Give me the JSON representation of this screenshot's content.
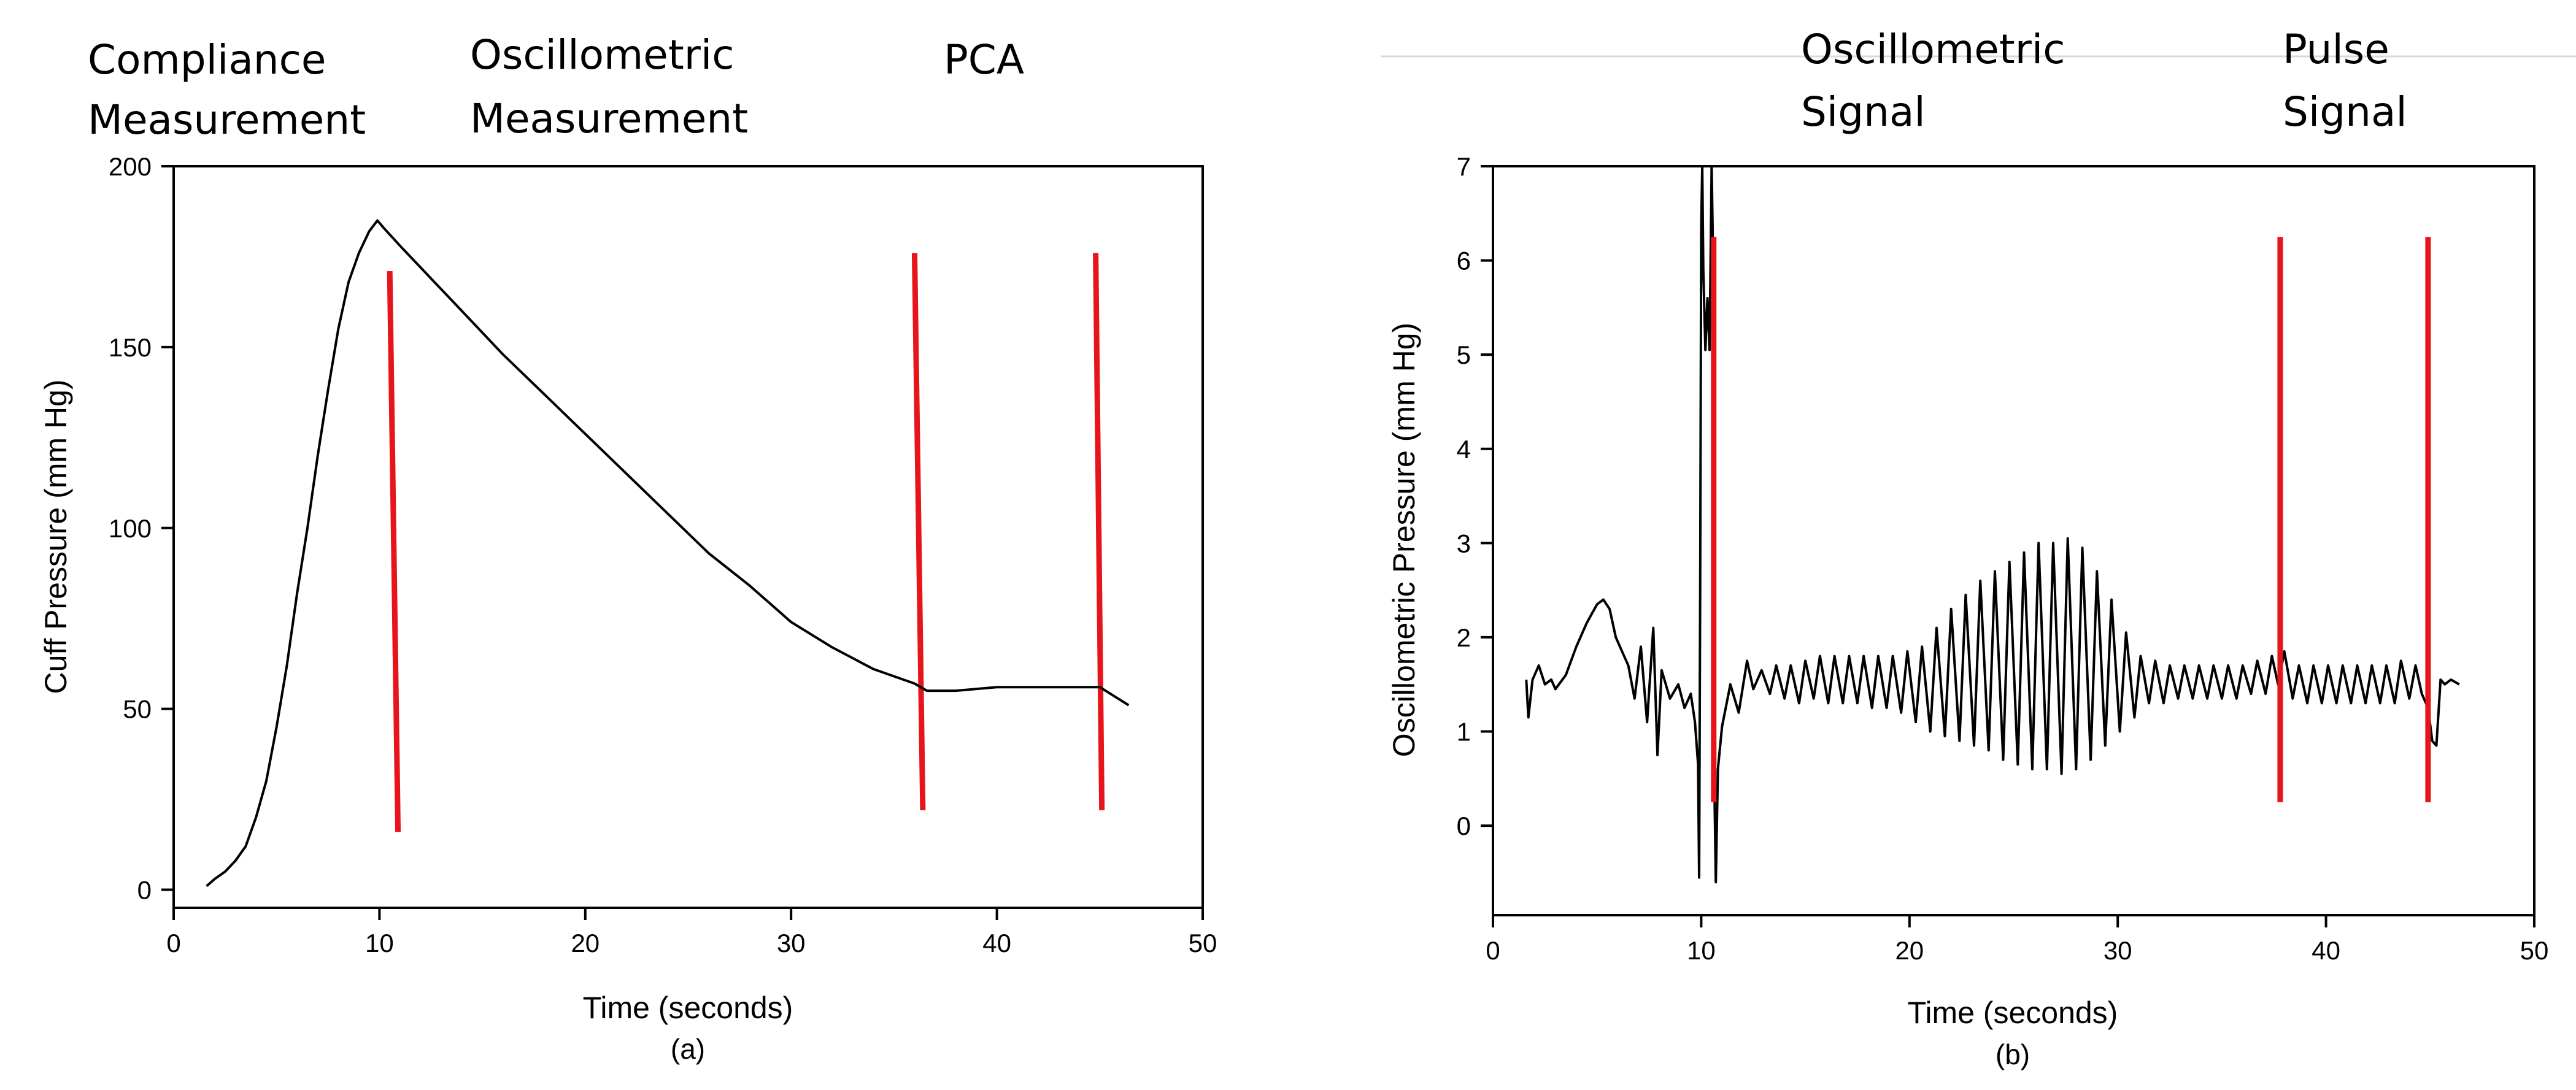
{
  "colors": {
    "signal": "#000000",
    "marker": "#e8141c",
    "axis": "#000000",
    "background": "#ffffff"
  },
  "chart_data": [
    {
      "id": "a",
      "type": "line",
      "panel_label": "(a)",
      "xlabel": "Time (seconds)",
      "ylabel": "Cuff Pressure (mm Hg)",
      "xlim": [
        0,
        50
      ],
      "ylim": [
        -5,
        200
      ],
      "xticks": [
        0,
        10,
        20,
        30,
        40,
        50
      ],
      "yticks": [
        0,
        50,
        100,
        150,
        200
      ],
      "grid": false,
      "legend": "none",
      "phase_labels": [
        {
          "lines": [
            "Compliance",
            "Measurement"
          ]
        },
        {
          "lines": [
            "Oscillometric",
            "Measurement"
          ]
        },
        {
          "lines": [
            "PCA"
          ]
        }
      ],
      "markers": [
        {
          "x_top": 10.5,
          "y_top": 171,
          "x_bottom": 10.9,
          "y_bottom": 16
        },
        {
          "x_top": 36.0,
          "y_top": 176,
          "x_bottom": 36.4,
          "y_bottom": 22
        },
        {
          "x_top": 44.8,
          "y_top": 176,
          "x_bottom": 45.1,
          "y_bottom": 22
        }
      ],
      "series": [
        {
          "x": [
            1.6,
            2.0,
            2.5,
            3.0,
            3.5,
            4.0,
            4.5,
            5.0,
            5.5,
            6.0,
            6.5,
            7.0,
            7.5,
            8.0,
            8.5,
            9.0,
            9.5,
            9.9,
            10.2,
            11.0,
            12.0,
            13.0,
            14.0,
            16.0,
            18.0,
            20.0,
            22.0,
            24.0,
            26.0,
            28.0,
            30.0,
            32.0,
            34.0,
            36.0,
            36.6,
            38.0,
            40.0,
            42.0,
            44.0,
            45.0,
            46.4
          ],
          "y": [
            1,
            3,
            5,
            8,
            12,
            20,
            30,
            45,
            62,
            82,
            100,
            120,
            138,
            155,
            168,
            176,
            182,
            185,
            183,
            178,
            172,
            166,
            160,
            148,
            137,
            126,
            115,
            104,
            93,
            84,
            74,
            67,
            61,
            57,
            55,
            55,
            56,
            56,
            56,
            56,
            51
          ]
        }
      ]
    },
    {
      "id": "b",
      "type": "line",
      "panel_label": "(b)",
      "xlabel": "Time (seconds)",
      "ylabel": "Oscillometric Pressure (mm Hg)",
      "xlim": [
        0,
        50
      ],
      "ylim": [
        -0.95,
        7
      ],
      "xticks": [
        0,
        10,
        20,
        30,
        40,
        50
      ],
      "yticks": [
        0,
        1,
        2,
        3,
        4,
        5,
        6,
        7
      ],
      "grid": false,
      "legend": "none",
      "phase_labels": [
        {
          "lines": [
            "Oscillometric",
            "Signal"
          ]
        },
        {
          "lines": [
            "Pulse",
            "Signal"
          ]
        }
      ],
      "markers": [
        {
          "x_top": 10.6,
          "y_top": 6.25,
          "x_bottom": 10.6,
          "y_bottom": 0.25
        },
        {
          "x_top": 37.8,
          "y_top": 6.25,
          "x_bottom": 37.8,
          "y_bottom": 0.25
        },
        {
          "x_top": 44.9,
          "y_top": 6.25,
          "x_bottom": 44.9,
          "y_bottom": 0.25
        }
      ],
      "series": [
        {
          "x": [
            1.6,
            1.7,
            1.9,
            2.2,
            2.5,
            2.8,
            3.0,
            3.5,
            4.0,
            4.5,
            5.0,
            5.3,
            5.6,
            5.9,
            6.2,
            6.5,
            6.8,
            7.1,
            7.4,
            7.7,
            7.9,
            8.1,
            8.5,
            8.9,
            9.2,
            9.5,
            9.7,
            9.85,
            9.9,
            9.95,
            10.0,
            10.05,
            10.1,
            10.2,
            10.3,
            10.4,
            10.45,
            10.5,
            10.55,
            10.6,
            10.7,
            10.8,
            11.0,
            11.4,
            11.8,
            12.2,
            12.5,
            12.9,
            13.3,
            13.6,
            14.0,
            14.3,
            14.7,
            15.0,
            15.4,
            15.7,
            16.1,
            16.4,
            16.8,
            17.1,
            17.5,
            17.8,
            18.2,
            18.5,
            18.9,
            19.2,
            19.6,
            19.9,
            20.3,
            20.6,
            21.0,
            21.3,
            21.7,
            22.0,
            22.4,
            22.7,
            23.1,
            23.4,
            23.8,
            24.1,
            24.5,
            24.8,
            25.2,
            25.5,
            25.9,
            26.2,
            26.6,
            26.9,
            27.3,
            27.6,
            28.0,
            28.3,
            28.7,
            29.0,
            29.4,
            29.7,
            30.1,
            30.4,
            30.8,
            31.1,
            31.5,
            31.8,
            32.2,
            32.5,
            32.9,
            33.2,
            33.6,
            33.9,
            34.3,
            34.6,
            35.0,
            35.3,
            35.7,
            36.0,
            36.4,
            36.7,
            37.1,
            37.4,
            37.7,
            38.0,
            38.4,
            38.7,
            39.1,
            39.4,
            39.8,
            40.1,
            40.5,
            40.8,
            41.2,
            41.5,
            41.9,
            42.2,
            42.6,
            42.9,
            43.3,
            43.6,
            44.0,
            44.3,
            44.6,
            44.9,
            45.1,
            45.3,
            45.5,
            45.7,
            46.0,
            46.4
          ],
          "y": [
            1.55,
            1.15,
            1.55,
            1.7,
            1.5,
            1.55,
            1.45,
            1.6,
            1.9,
            2.15,
            2.35,
            2.4,
            2.3,
            2.0,
            1.85,
            1.7,
            1.35,
            1.9,
            1.1,
            2.1,
            0.75,
            1.65,
            1.35,
            1.5,
            1.25,
            1.4,
            1.1,
            0.65,
            -0.55,
            2.5,
            6.35,
            7.0,
            5.9,
            5.05,
            5.6,
            5.05,
            6.0,
            7.0,
            6.3,
            0.9,
            -0.6,
            0.6,
            1.05,
            1.5,
            1.2,
            1.75,
            1.45,
            1.65,
            1.4,
            1.7,
            1.35,
            1.7,
            1.3,
            1.75,
            1.35,
            1.8,
            1.3,
            1.8,
            1.3,
            1.8,
            1.3,
            1.8,
            1.25,
            1.8,
            1.25,
            1.8,
            1.2,
            1.85,
            1.1,
            1.9,
            1.0,
            2.1,
            0.95,
            2.3,
            0.9,
            2.45,
            0.85,
            2.6,
            0.8,
            2.7,
            0.7,
            2.8,
            0.65,
            2.9,
            0.6,
            3.0,
            0.6,
            3.0,
            0.55,
            3.05,
            0.6,
            2.95,
            0.7,
            2.7,
            0.85,
            2.4,
            1.0,
            2.05,
            1.15,
            1.8,
            1.3,
            1.75,
            1.3,
            1.7,
            1.35,
            1.7,
            1.35,
            1.7,
            1.35,
            1.7,
            1.35,
            1.7,
            1.35,
            1.7,
            1.4,
            1.75,
            1.4,
            1.8,
            1.5,
            1.85,
            1.35,
            1.7,
            1.3,
            1.7,
            1.3,
            1.7,
            1.3,
            1.7,
            1.3,
            1.7,
            1.3,
            1.7,
            1.3,
            1.7,
            1.3,
            1.75,
            1.35,
            1.7,
            1.4,
            1.25,
            0.9,
            0.85,
            1.55,
            1.5,
            1.55,
            1.5
          ]
        }
      ]
    }
  ]
}
